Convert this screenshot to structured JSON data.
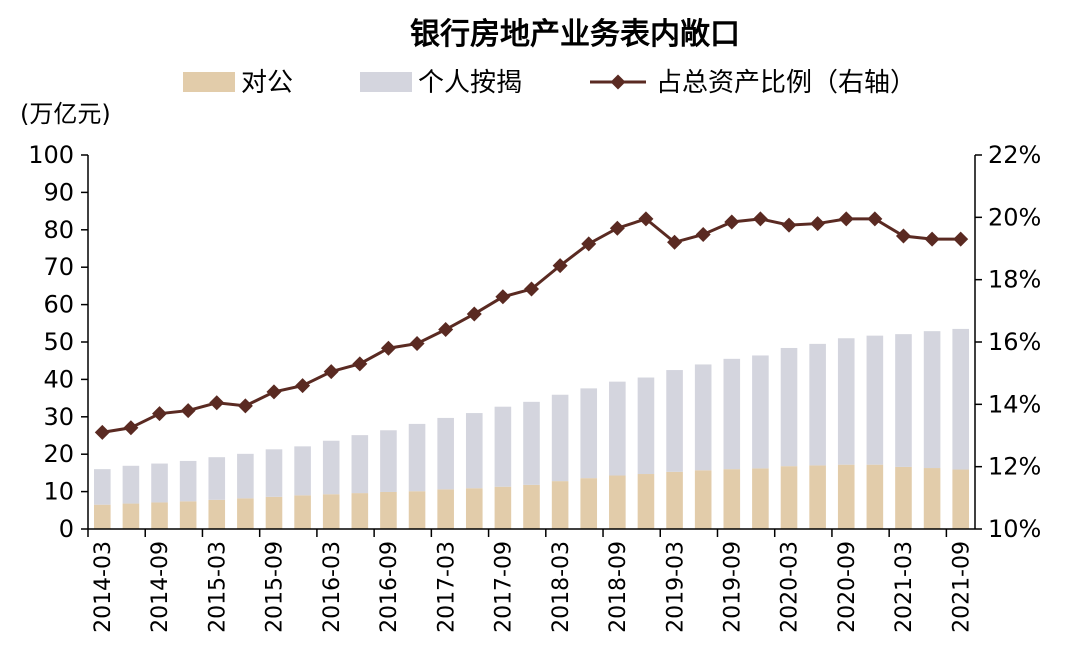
{
  "chart_data": {
    "type": "bar",
    "title": "银行房地产业务表内敞口",
    "y_unit_label": "(万亿元)",
    "stacked": true,
    "legend_position": "top",
    "grid": false,
    "categories": [
      "2014-03",
      "2014-06",
      "2014-09",
      "2014-12",
      "2015-03",
      "2015-06",
      "2015-09",
      "2015-12",
      "2016-03",
      "2016-06",
      "2016-09",
      "2016-12",
      "2017-03",
      "2017-06",
      "2017-09",
      "2017-12",
      "2018-03",
      "2018-06",
      "2018-09",
      "2018-12",
      "2019-03",
      "2019-06",
      "2019-09",
      "2019-12",
      "2020-03",
      "2020-06",
      "2020-09",
      "2020-12",
      "2021-03",
      "2021-06",
      "2021-09"
    ],
    "x_tick_labels": [
      "2014-03",
      "2014-09",
      "2015-03",
      "2015-09",
      "2016-03",
      "2016-09",
      "2017-03",
      "2017-09",
      "2018-03",
      "2018-09",
      "2019-03",
      "2019-09",
      "2020-03",
      "2020-09",
      "2021-03",
      "2021-09"
    ],
    "series": [
      {
        "name": "对公",
        "type": "bar",
        "color": "#e2ccaa",
        "values": [
          6.5,
          6.8,
          7.1,
          7.4,
          7.8,
          8.2,
          8.6,
          9.0,
          9.3,
          9.6,
          9.9,
          10.1,
          10.6,
          10.9,
          11.3,
          11.8,
          12.8,
          13.6,
          14.3,
          14.7,
          15.3,
          15.7,
          16.0,
          16.2,
          16.8,
          17.0,
          17.2,
          17.2,
          16.6,
          16.3,
          15.9
        ]
      },
      {
        "name": "个人按揭",
        "type": "bar",
        "color": "#d4d5de",
        "values": [
          9.5,
          10.1,
          10.4,
          10.8,
          11.4,
          11.9,
          12.7,
          13.1,
          14.3,
          15.5,
          16.5,
          18.0,
          19.1,
          20.1,
          21.4,
          22.2,
          23.1,
          24.0,
          25.1,
          25.8,
          27.2,
          28.3,
          29.5,
          30.2,
          31.6,
          32.5,
          33.8,
          34.5,
          35.5,
          36.6,
          37.6
        ]
      },
      {
        "name": "占总资产比例（右轴）",
        "type": "line",
        "axis": "right",
        "color": "#5a2a22",
        "values": [
          13.1,
          13.25,
          13.7,
          13.8,
          14.05,
          13.95,
          14.4,
          14.6,
          15.05,
          15.3,
          15.8,
          15.95,
          16.4,
          16.9,
          17.45,
          17.7,
          18.45,
          19.15,
          19.65,
          19.95,
          19.2,
          19.45,
          19.85,
          19.95,
          19.75,
          19.8,
          19.95,
          19.95,
          19.4,
          19.3,
          19.3
        ]
      }
    ],
    "y_left": {
      "min": 0,
      "max": 100,
      "ticks": [
        0,
        10,
        20,
        30,
        40,
        50,
        60,
        70,
        80,
        90,
        100
      ]
    },
    "y_right": {
      "min": 10,
      "max": 22,
      "ticks": [
        "10%",
        "12%",
        "14%",
        "16%",
        "18%",
        "20%",
        "22%"
      ]
    }
  }
}
